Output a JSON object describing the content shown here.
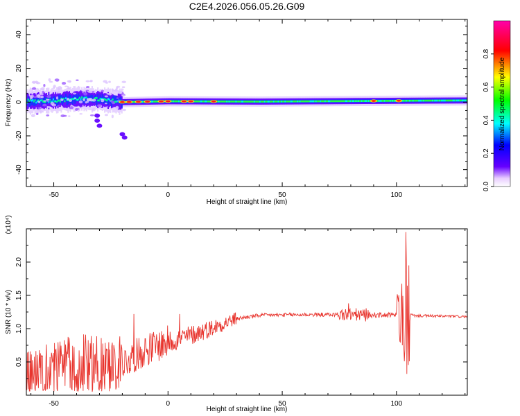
{
  "title": "C2E4.2026.056.05.26.G09",
  "chart_data": [
    {
      "type": "heatmap",
      "xlabel": "Height of straight line (km)",
      "ylabel": "Frequency (Hz)",
      "xlim": [
        -62,
        131
      ],
      "ylim": [
        -50,
        49
      ],
      "xticks": [
        -50,
        0,
        50,
        100
      ],
      "yticks": [
        -40,
        -20,
        0,
        20,
        40
      ],
      "xticklabels": [
        "-50",
        "0",
        "50",
        "100"
      ],
      "yticklabels": [
        "-40",
        "-20",
        "0",
        "20",
        "40"
      ],
      "colorbar": {
        "label": "Normalized spectral amplitude",
        "range": [
          0,
          1
        ],
        "ticks": [
          0.0,
          0.2,
          0.4,
          0.6,
          0.8
        ],
        "ticklabels": [
          "0.0",
          "0.2",
          "0.4",
          "0.6",
          "0.8"
        ],
        "colormap": [
          "#ffffff",
          "#6600ff",
          "#0000ff",
          "#00ffff",
          "#00ff00",
          "#ffff00",
          "#ff0000",
          "#ff00aa"
        ]
      },
      "band_center": [
        {
          "x": -62,
          "y": 0.5
        },
        {
          "x": -50,
          "y": 1.0
        },
        {
          "x": -40,
          "y": 2.0
        },
        {
          "x": -30,
          "y": 1.5
        },
        {
          "x": -20,
          "y": 0.0
        },
        {
          "x": 0,
          "y": 0.5
        },
        {
          "x": 40,
          "y": 0.3
        },
        {
          "x": 100,
          "y": 0.8
        },
        {
          "x": 131,
          "y": 1.0
        }
      ],
      "hotspots_x": [
        -20,
        -17,
        -13,
        -9,
        -3,
        0,
        7,
        10,
        20,
        90,
        101
      ]
    },
    {
      "type": "line",
      "xlabel": "Height of straight line (km)",
      "ylabel": "SNR (10 * v/v)",
      "scale_label": "(x10⁴)",
      "xlim": [
        -62,
        131
      ],
      "ylim": [
        0,
        2.5
      ],
      "xticks": [
        -50,
        0,
        50,
        100
      ],
      "yticks": [
        0.5,
        1.0,
        1.5,
        2.0
      ],
      "xticklabels": [
        "-50",
        "0",
        "50",
        "100"
      ],
      "yticklabels": [
        "0.5",
        "1.0",
        "1.5",
        "2.0"
      ],
      "line_color": "#e8352e",
      "trend": [
        {
          "x": -62,
          "y": 0.22
        },
        {
          "x": -50,
          "y": 0.28
        },
        {
          "x": -40,
          "y": 0.32
        },
        {
          "x": -30,
          "y": 0.35
        },
        {
          "x": -20,
          "y": 0.48
        },
        {
          "x": -10,
          "y": 0.68
        },
        {
          "x": 0,
          "y": 0.8
        },
        {
          "x": 10,
          "y": 0.9
        },
        {
          "x": 20,
          "y": 1.02
        },
        {
          "x": 30,
          "y": 1.15
        },
        {
          "x": 40,
          "y": 1.2
        },
        {
          "x": 60,
          "y": 1.21
        },
        {
          "x": 80,
          "y": 1.21
        },
        {
          "x": 100,
          "y": 1.2
        },
        {
          "x": 131,
          "y": 1.18
        }
      ],
      "spikes": [
        {
          "x": -15,
          "y": 1.22
        },
        {
          "x": 5,
          "y": 1.22
        },
        {
          "x": 79,
          "y": 1.38
        },
        {
          "x": 101,
          "y": 1.5
        },
        {
          "x": 102.5,
          "y": 0.75
        },
        {
          "x": 104,
          "y": 2.45
        },
        {
          "x": 104.5,
          "y": 0.32
        },
        {
          "x": 105.5,
          "y": 1.95
        }
      ]
    }
  ]
}
